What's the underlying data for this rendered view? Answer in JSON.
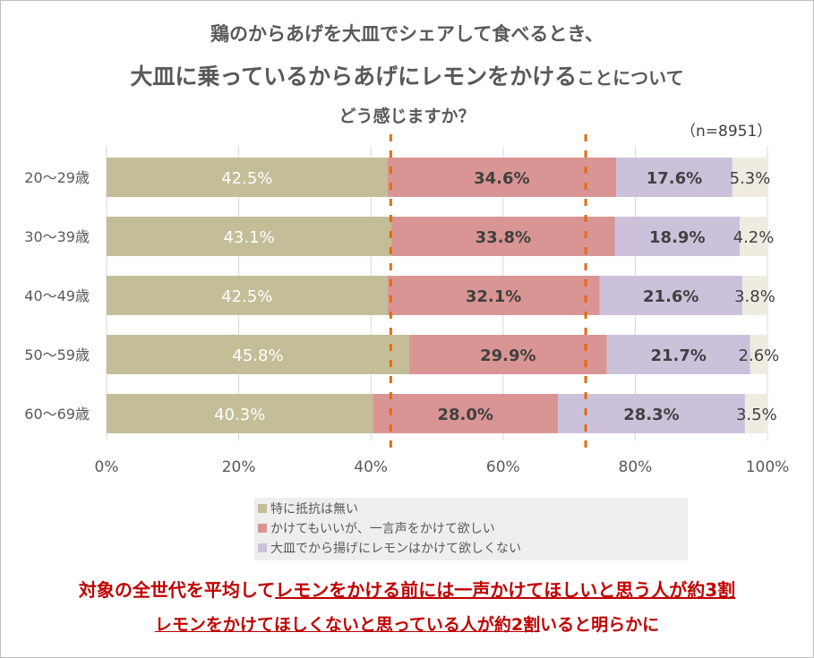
{
  "title": {
    "line1": "鶏のからあげを大皿でシェアして食べるとき、",
    "line2_main": "大皿に乗っているからあげにレモンをかける",
    "line2_small": "ことについて",
    "line3": "どう感じますか？"
  },
  "sample_size": "（n=8951）",
  "chart_data": {
    "type": "bar",
    "orientation": "horizontal",
    "stacked": true,
    "categories": [
      "20〜29歳",
      "30〜39歳",
      "40〜49歳",
      "50〜59歳",
      "60〜69歳"
    ],
    "series": [
      {
        "name": "特に抵抗は無い",
        "color": "#c4be98",
        "label_color": "#ffffff",
        "label_bold": false,
        "values": [
          42.5,
          43.1,
          42.5,
          45.8,
          40.3
        ],
        "labels": [
          "42.5%",
          "43.1%",
          "42.5%",
          "45.8%",
          "40.3%"
        ]
      },
      {
        "name": "かけてもいいが、一言声をかけて欲しい",
        "color": "#d99594",
        "label_color": "#404040",
        "label_bold": true,
        "values": [
          34.6,
          33.8,
          32.1,
          29.9,
          28.0
        ],
        "labels": [
          "34.6%",
          "33.8%",
          "32.1%",
          "29.9%",
          "28.0%"
        ]
      },
      {
        "name": "大皿でから揚げにレモンはかけて欲しくない",
        "color": "#ccc1da",
        "label_color": "#404040",
        "label_bold": true,
        "values": [
          17.6,
          18.9,
          21.6,
          21.7,
          28.3
        ],
        "labels": [
          "17.6%",
          "18.9%",
          "21.6%",
          "21.7%",
          "28.3%"
        ]
      },
      {
        "name": "",
        "color": "#eeece1",
        "label_color": "#404040",
        "label_bold": false,
        "values": [
          5.3,
          4.2,
          3.8,
          2.6,
          3.5
        ],
        "labels": [
          "5.3%",
          "4.2%",
          "3.8%",
          "2.6%",
          "3.5%"
        ]
      }
    ],
    "x_ticks": [
      "0%",
      "20%",
      "40%",
      "60%",
      "80%",
      "100%"
    ],
    "xlim": [
      0,
      100
    ],
    "grid": true,
    "reference_lines": [
      {
        "value": 43,
        "color": "#e36c0a",
        "style": "dashed"
      },
      {
        "value": 72.5,
        "color": "#e36c0a",
        "style": "dashed"
      }
    ],
    "legend_position": "bottom"
  },
  "footer": {
    "line1_a": "対象の全世代を平均して",
    "line1_b": "レモンをかける前には一声かけてほしいと思う人が約3割",
    "line2_a": "レモンをかけてほしくないと思っている人が約2割",
    "line2_b": "いると明らかに"
  }
}
